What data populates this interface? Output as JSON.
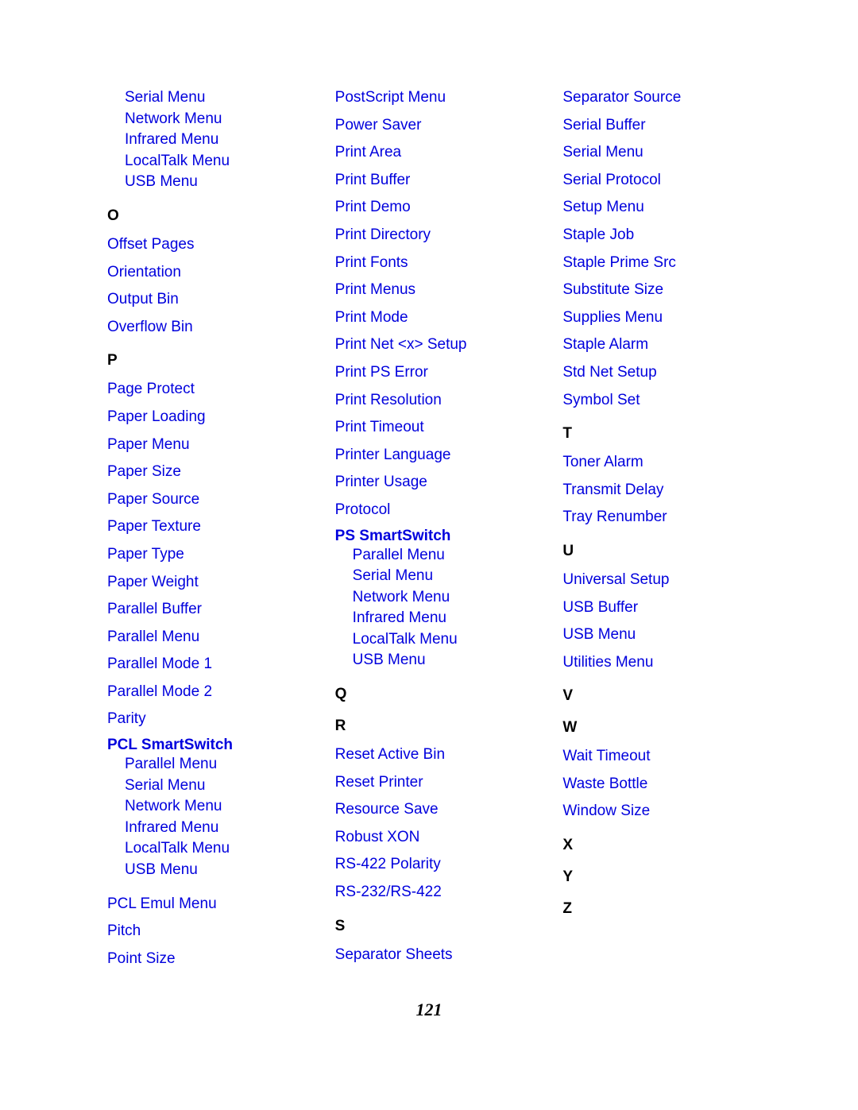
{
  "pageNumber": "121",
  "col1": {
    "preItems": [
      "Serial Menu",
      "Network Menu",
      "Infrared Menu",
      "LocalTalk Menu",
      "USB Menu"
    ],
    "sections": [
      {
        "letter": "O",
        "items": [
          "Offset Pages",
          "Orientation",
          "Output Bin",
          "Overflow Bin"
        ]
      },
      {
        "letter": "P",
        "items": [
          "Page Protect",
          "Paper Loading",
          "Paper Menu",
          "Paper Size",
          "Paper Source",
          "Paper Texture",
          "Paper Type",
          "Paper Weight",
          "Parallel Buffer",
          "Parallel Menu",
          "Parallel Mode 1",
          "Parallel Mode 2",
          "Parity"
        ],
        "subHeading": "PCL SmartSwitch",
        "subItems": [
          "Parallel Menu",
          "Serial Menu",
          "Network Menu",
          "Infrared Menu",
          "LocalTalk Menu",
          "USB Menu"
        ],
        "postItems": [
          "PCL Emul Menu",
          "Pitch",
          "Point Size"
        ]
      }
    ]
  },
  "col2": {
    "preItems": [
      "PostScript Menu",
      "Power Saver",
      "Print Area",
      "Print Buffer",
      "Print Demo",
      "Print Directory",
      "Print Fonts",
      "Print Menus",
      "Print Mode",
      "Print Net <x> Setup",
      "Print PS Error",
      "Print Resolution",
      "Print Timeout",
      "Printer Language",
      "Printer Usage",
      "Protocol"
    ],
    "subHeading": "PS SmartSwitch",
    "subItems": [
      "Parallel Menu",
      "Serial Menu",
      "Network Menu",
      "Infrared Menu",
      "LocalTalk Menu",
      "USB Menu"
    ],
    "sections": [
      {
        "letter": "Q",
        "items": []
      },
      {
        "letter": "R",
        "items": [
          "Reset Active Bin",
          "Reset Printer",
          "Resource Save",
          "Robust XON",
          "RS-422 Polarity",
          "RS-232/RS-422"
        ]
      },
      {
        "letter": "S",
        "items": [
          "Separator Sheets"
        ]
      }
    ]
  },
  "col3": {
    "preItems": [
      "Separator Source",
      "Serial Buffer",
      "Serial Menu",
      "Serial Protocol",
      "Setup Menu",
      "Staple Job",
      "Staple Prime Src",
      "Substitute Size",
      "Supplies Menu",
      "Staple Alarm",
      "Std Net Setup",
      "Symbol Set"
    ],
    "sections": [
      {
        "letter": "T",
        "items": [
          "Toner Alarm",
          "Transmit Delay",
          "Tray Renumber"
        ]
      },
      {
        "letter": "U",
        "items": [
          "Universal Setup",
          "USB Buffer",
          "USB Menu",
          "Utilities Menu"
        ]
      },
      {
        "letter": "V",
        "items": []
      },
      {
        "letter": "W",
        "items": [
          "Wait Timeout",
          "Waste Bottle",
          "Window Size"
        ]
      },
      {
        "letter": "X",
        "items": []
      },
      {
        "letter": "Y",
        "items": []
      },
      {
        "letter": "Z",
        "items": []
      }
    ]
  }
}
